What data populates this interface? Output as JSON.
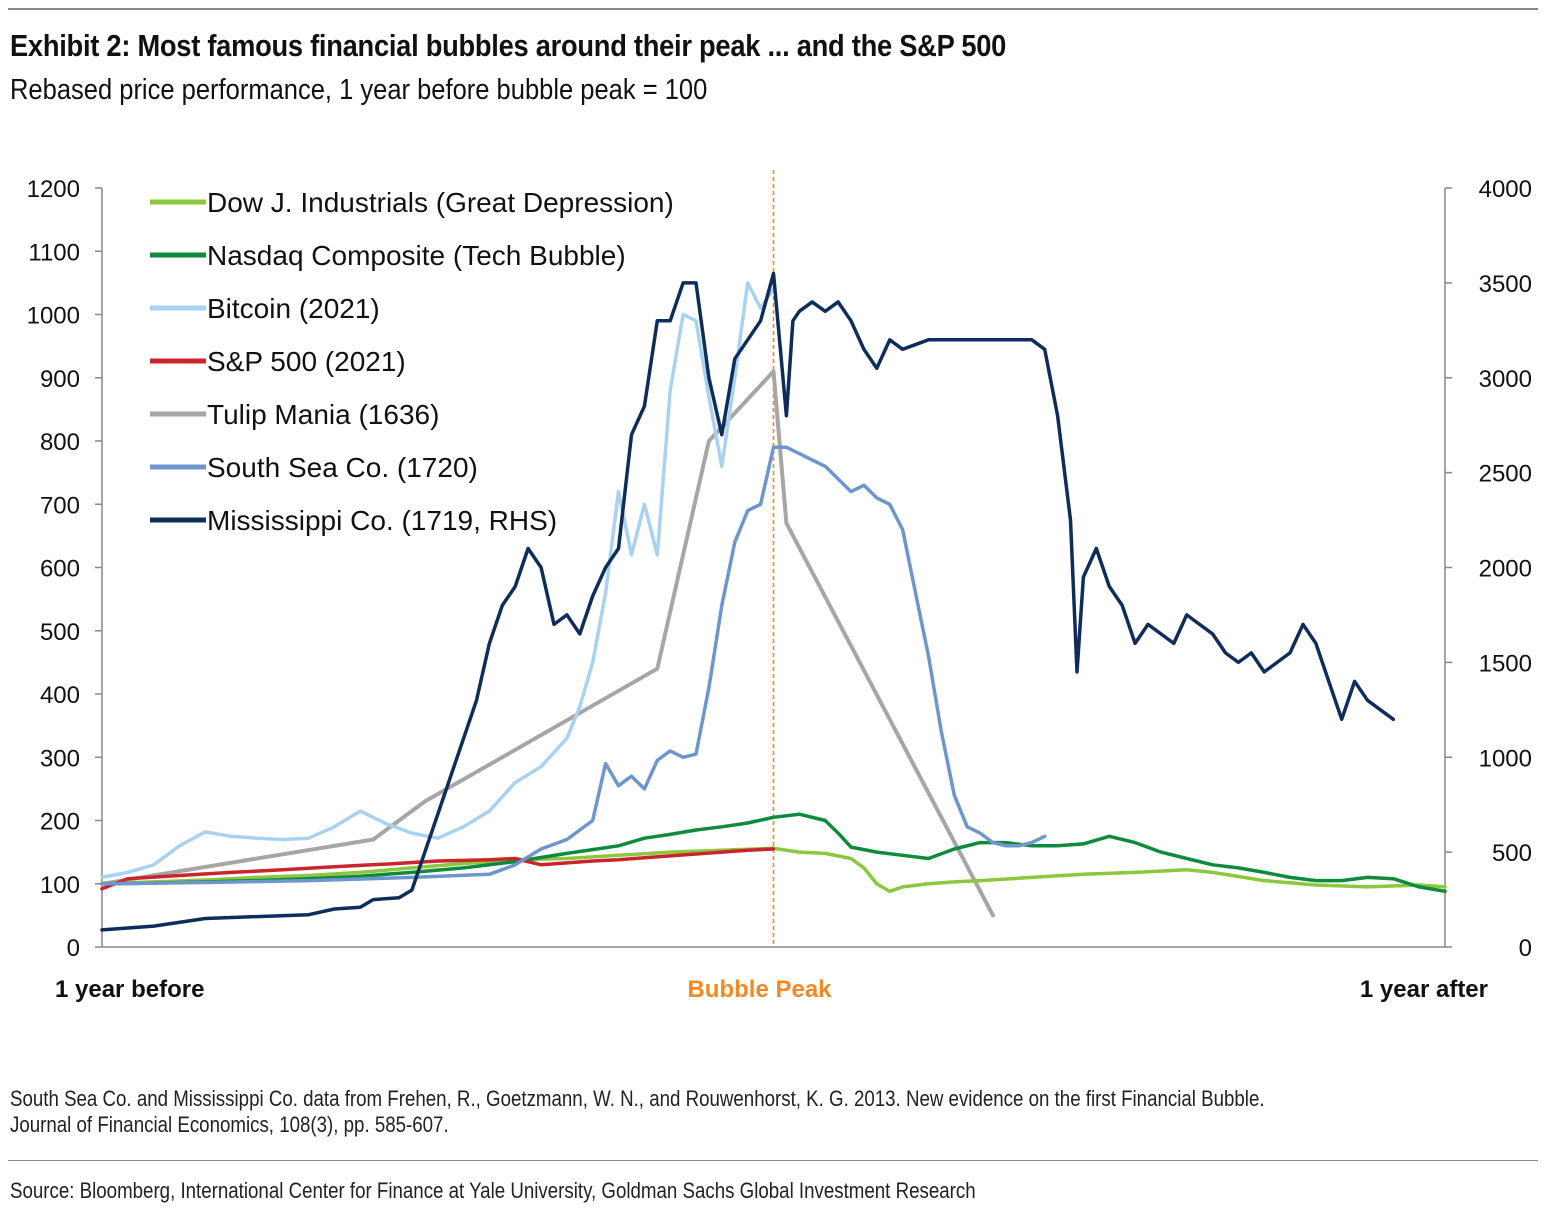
{
  "header": {
    "title": "Exhibit 2: Most famous financial bubbles around their peak ... and the S&P 500",
    "subtitle": "Rebased price performance, 1 year before bubble peak = 100"
  },
  "footer": {
    "note_line1": "South Sea Co. and Mississippi Co. data from Frehen, R., Goetzmann, W. N., and Rouwenhorst, K. G. 2013. New evidence on the first Financial Bubble.",
    "note_line2": "Journal of Financial Economics, 108(3), pp. 585-607.",
    "source": "Source: Bloomberg, International Center for Finance at Yale University, Goldman Sachs Global Investment Research"
  },
  "colors": {
    "peak_line": "#f08a24",
    "peak_label": "#f08a24",
    "axis": "#888888"
  },
  "chart_data": {
    "type": "line",
    "title": "Exhibit 2: Most famous financial bubbles around their peak ... and the S&P 500",
    "subtitle": "Rebased price performance, 1 year before bubble peak = 100",
    "x_unit": "weeks relative to bubble peak",
    "x_range": [
      -52,
      52
    ],
    "x_labels": [
      {
        "x": -52,
        "label": "1 year before"
      },
      {
        "x": 0,
        "label": "Bubble Peak"
      },
      {
        "x": 52,
        "label": "1 year after"
      }
    ],
    "peak_marker": {
      "x": 0,
      "label": "Bubble Peak"
    },
    "ylim_left": [
      0,
      1200
    ],
    "yticks_left": [
      0,
      100,
      200,
      300,
      400,
      500,
      600,
      700,
      800,
      900,
      1000,
      1100,
      1200
    ],
    "ylim_right": [
      0,
      4000
    ],
    "yticks_right": [
      0,
      500,
      1000,
      1500,
      2000,
      2500,
      3000,
      3500,
      4000
    ],
    "grid": false,
    "legend_position": "top-left",
    "series": [
      {
        "name": "Dow J. Industrials (Great Depression)",
        "color": "#8dc63f",
        "axis": "left",
        "points": [
          [
            -52,
            100
          ],
          [
            -48,
            103
          ],
          [
            -44,
            106
          ],
          [
            -40,
            110
          ],
          [
            -36,
            113
          ],
          [
            -32,
            118
          ],
          [
            -28,
            125
          ],
          [
            -24,
            132
          ],
          [
            -20,
            138
          ],
          [
            -16,
            140
          ],
          [
            -12,
            145
          ],
          [
            -8,
            150
          ],
          [
            -4,
            153
          ],
          [
            0,
            156
          ],
          [
            2,
            150
          ],
          [
            4,
            148
          ],
          [
            6,
            140
          ],
          [
            7,
            125
          ],
          [
            8,
            100
          ],
          [
            9,
            88
          ],
          [
            10,
            95
          ],
          [
            12,
            100
          ],
          [
            14,
            103
          ],
          [
            16,
            105
          ],
          [
            20,
            110
          ],
          [
            24,
            115
          ],
          [
            28,
            118
          ],
          [
            32,
            122
          ],
          [
            34,
            118
          ],
          [
            38,
            105
          ],
          [
            42,
            98
          ],
          [
            46,
            95
          ],
          [
            50,
            98
          ],
          [
            52,
            95
          ]
        ]
      },
      {
        "name": "Nasdaq Composite (Tech Bubble)",
        "color": "#0e8a3e",
        "axis": "left",
        "points": [
          [
            -52,
            100
          ],
          [
            -48,
            101
          ],
          [
            -44,
            103
          ],
          [
            -40,
            105
          ],
          [
            -36,
            108
          ],
          [
            -32,
            112
          ],
          [
            -28,
            118
          ],
          [
            -24,
            125
          ],
          [
            -20,
            135
          ],
          [
            -16,
            148
          ],
          [
            -12,
            160
          ],
          [
            -10,
            172
          ],
          [
            -8,
            178
          ],
          [
            -6,
            185
          ],
          [
            -4,
            190
          ],
          [
            -2,
            196
          ],
          [
            0,
            205
          ],
          [
            2,
            210
          ],
          [
            4,
            200
          ],
          [
            5,
            180
          ],
          [
            6,
            158
          ],
          [
            8,
            150
          ],
          [
            10,
            145
          ],
          [
            12,
            140
          ],
          [
            14,
            155
          ],
          [
            16,
            165
          ],
          [
            18,
            165
          ],
          [
            20,
            160
          ],
          [
            22,
            160
          ],
          [
            24,
            163
          ],
          [
            26,
            175
          ],
          [
            28,
            165
          ],
          [
            30,
            150
          ],
          [
            32,
            140
          ],
          [
            34,
            130
          ],
          [
            36,
            125
          ],
          [
            38,
            118
          ],
          [
            40,
            110
          ],
          [
            42,
            105
          ],
          [
            44,
            105
          ],
          [
            46,
            110
          ],
          [
            48,
            108
          ],
          [
            50,
            95
          ],
          [
            52,
            88
          ]
        ]
      },
      {
        "name": "Bitcoin (2021)",
        "color": "#a9d2f1",
        "axis": "left",
        "points": [
          [
            -52,
            110
          ],
          [
            -50,
            118
          ],
          [
            -48,
            130
          ],
          [
            -46,
            160
          ],
          [
            -44,
            182
          ],
          [
            -42,
            175
          ],
          [
            -40,
            172
          ],
          [
            -38,
            170
          ],
          [
            -36,
            172
          ],
          [
            -34,
            190
          ],
          [
            -32,
            215
          ],
          [
            -30,
            195
          ],
          [
            -28,
            180
          ],
          [
            -26,
            172
          ],
          [
            -24,
            190
          ],
          [
            -22,
            215
          ],
          [
            -20,
            260
          ],
          [
            -18,
            285
          ],
          [
            -16,
            330
          ],
          [
            -15,
            380
          ],
          [
            -14,
            450
          ],
          [
            -13,
            560
          ],
          [
            -12,
            720
          ],
          [
            -11,
            620
          ],
          [
            -10,
            700
          ],
          [
            -9,
            620
          ],
          [
            -8,
            880
          ],
          [
            -7,
            1000
          ],
          [
            -6,
            990
          ],
          [
            -5,
            870
          ],
          [
            -4,
            760
          ],
          [
            -3,
            900
          ],
          [
            -2,
            1050
          ],
          [
            -1,
            1010
          ],
          [
            0,
            1040
          ]
        ]
      },
      {
        "name": "S&P 500 (2021)",
        "color": "#c9252c",
        "axis": "left",
        "points": [
          [
            -52,
            92
          ],
          [
            -50,
            108
          ],
          [
            -46,
            113
          ],
          [
            -42,
            118
          ],
          [
            -38,
            122
          ],
          [
            -34,
            127
          ],
          [
            -30,
            131
          ],
          [
            -26,
            136
          ],
          [
            -22,
            138
          ],
          [
            -20,
            140
          ],
          [
            -18,
            130
          ],
          [
            -16,
            133
          ],
          [
            -14,
            136
          ],
          [
            -12,
            138
          ],
          [
            -10,
            141
          ],
          [
            -8,
            144
          ],
          [
            -6,
            147
          ],
          [
            -4,
            150
          ],
          [
            -2,
            153
          ],
          [
            0,
            155
          ]
        ]
      },
      {
        "name": "Tulip Mania (1636)",
        "color": "#a6a6a6",
        "axis": "left",
        "points": [
          [
            -52,
            100
          ],
          [
            -31,
            170
          ],
          [
            -27,
            230
          ],
          [
            -9,
            440
          ],
          [
            -5,
            800
          ],
          [
            0,
            910
          ],
          [
            1,
            670
          ],
          [
            17,
            50
          ]
        ]
      },
      {
        "name": "South Sea Co. (1720)",
        "color": "#6e96cc",
        "axis": "left",
        "points": [
          [
            -52,
            100
          ],
          [
            -44,
            102
          ],
          [
            -36,
            105
          ],
          [
            -28,
            110
          ],
          [
            -22,
            115
          ],
          [
            -20,
            130
          ],
          [
            -18,
            155
          ],
          [
            -16,
            170
          ],
          [
            -14,
            200
          ],
          [
            -13,
            290
          ],
          [
            -12,
            255
          ],
          [
            -11,
            270
          ],
          [
            -10,
            250
          ],
          [
            -9,
            295
          ],
          [
            -8,
            310
          ],
          [
            -7,
            300
          ],
          [
            -6,
            305
          ],
          [
            -5,
            410
          ],
          [
            -4,
            540
          ],
          [
            -3,
            640
          ],
          [
            -2,
            690
          ],
          [
            -1,
            700
          ],
          [
            0,
            790
          ],
          [
            1,
            790
          ],
          [
            2,
            780
          ],
          [
            3,
            770
          ],
          [
            4,
            760
          ],
          [
            5,
            740
          ],
          [
            6,
            720
          ],
          [
            7,
            730
          ],
          [
            8,
            710
          ],
          [
            9,
            700
          ],
          [
            10,
            660
          ],
          [
            11,
            560
          ],
          [
            12,
            460
          ],
          [
            13,
            340
          ],
          [
            14,
            240
          ],
          [
            15,
            190
          ],
          [
            16,
            180
          ],
          [
            17,
            165
          ],
          [
            18,
            160
          ],
          [
            19,
            160
          ],
          [
            20,
            165
          ],
          [
            21,
            175
          ]
        ]
      },
      {
        "name": "Mississippi Co. (1719, RHS)",
        "color": "#0f2d5a",
        "axis": "right",
        "points": [
          [
            -52,
            90
          ],
          [
            -48,
            110
          ],
          [
            -44,
            150
          ],
          [
            -40,
            160
          ],
          [
            -36,
            170
          ],
          [
            -34,
            200
          ],
          [
            -32,
            210
          ],
          [
            -31,
            250
          ],
          [
            -29,
            260
          ],
          [
            -28,
            300
          ],
          [
            -26,
            700
          ],
          [
            -24,
            1100
          ],
          [
            -23,
            1300
          ],
          [
            -22,
            1600
          ],
          [
            -21,
            1800
          ],
          [
            -20,
            1900
          ],
          [
            -19,
            2100
          ],
          [
            -18,
            2000
          ],
          [
            -17,
            1700
          ],
          [
            -16,
            1750
          ],
          [
            -15,
            1650
          ],
          [
            -14,
            1850
          ],
          [
            -13,
            2000
          ],
          [
            -12,
            2100
          ],
          [
            -11,
            2700
          ],
          [
            -10,
            2850
          ],
          [
            -9,
            3300
          ],
          [
            -8,
            3300
          ],
          [
            -7,
            3500
          ],
          [
            -6,
            3500
          ],
          [
            -5,
            3000
          ],
          [
            -4,
            2700
          ],
          [
            -3,
            3100
          ],
          [
            -2,
            3200
          ],
          [
            -1,
            3300
          ],
          [
            0,
            3550
          ],
          [
            1,
            2800
          ],
          [
            1.5,
            3300
          ],
          [
            2,
            3350
          ],
          [
            3,
            3400
          ],
          [
            4,
            3350
          ],
          [
            5,
            3400
          ],
          [
            6,
            3300
          ],
          [
            7,
            3150
          ],
          [
            8,
            3050
          ],
          [
            9,
            3200
          ],
          [
            10,
            3150
          ],
          [
            12,
            3200
          ],
          [
            14,
            3200
          ],
          [
            16,
            3200
          ],
          [
            18,
            3200
          ],
          [
            20,
            3200
          ],
          [
            21,
            3150
          ],
          [
            22,
            2800
          ],
          [
            23,
            2250
          ],
          [
            23.5,
            1450
          ],
          [
            24,
            1950
          ],
          [
            25,
            2100
          ],
          [
            26,
            1900
          ],
          [
            27,
            1800
          ],
          [
            28,
            1600
          ],
          [
            29,
            1700
          ],
          [
            30,
            1650
          ],
          [
            31,
            1600
          ],
          [
            32,
            1750
          ],
          [
            33,
            1700
          ],
          [
            34,
            1650
          ],
          [
            35,
            1550
          ],
          [
            36,
            1500
          ],
          [
            37,
            1550
          ],
          [
            38,
            1450
          ],
          [
            39,
            1500
          ],
          [
            40,
            1550
          ],
          [
            41,
            1700
          ],
          [
            42,
            1600
          ],
          [
            43,
            1400
          ],
          [
            44,
            1200
          ],
          [
            45,
            1400
          ],
          [
            46,
            1300
          ],
          [
            47,
            1250
          ],
          [
            48,
            1200
          ]
        ]
      }
    ]
  }
}
